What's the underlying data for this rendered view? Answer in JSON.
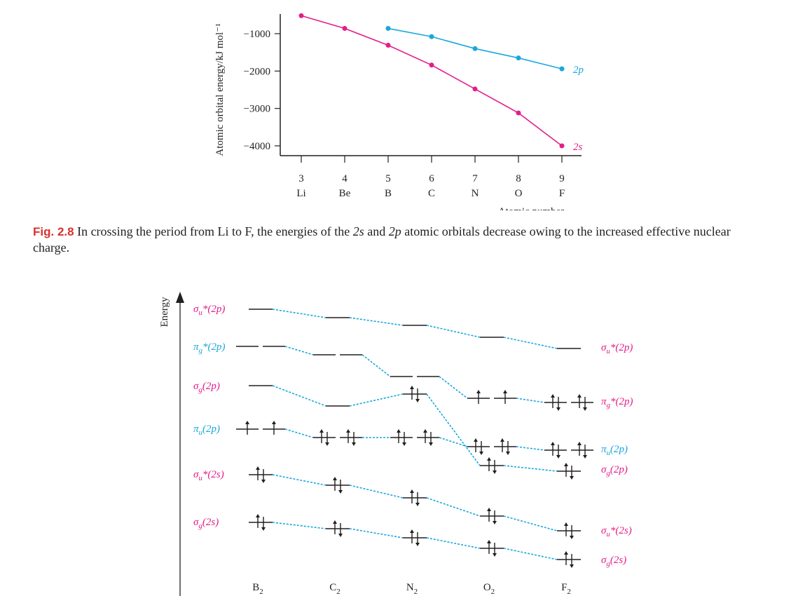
{
  "chart_data": [
    {
      "type": "line",
      "title": "",
      "ylabel": "Atomic orbital energy/kJ mol⁻¹",
      "xlabel": "Atomic number",
      "x": [
        3,
        4,
        5,
        6,
        7,
        8,
        9
      ],
      "x_element_labels": [
        "Li",
        "Be",
        "B",
        "C",
        "N",
        "O",
        "F"
      ],
      "ylim": [
        -4200,
        -400
      ],
      "yticks": [
        -1000,
        -2000,
        -3000,
        -4000
      ],
      "ytick_labels": [
        "−1000",
        "−2000",
        "−3000",
        "−4000"
      ],
      "grid": false,
      "series": [
        {
          "name": "2p",
          "color": "#1aa7dd",
          "x": [
            5,
            6,
            7,
            8,
            9
          ],
          "values": [
            -860,
            -1080,
            -1400,
            -1650,
            -1940
          ]
        },
        {
          "name": "2s",
          "color": "#e41d8b",
          "x": [
            3,
            4,
            5,
            6,
            7,
            8,
            9
          ],
          "values": [
            -520,
            -860,
            -1310,
            -1840,
            -2480,
            -3120,
            -4000
          ]
        }
      ]
    }
  ],
  "caption": {
    "label": "Fig. 2.8",
    "part1": " In crossing the period from Li to F, the energies of the ",
    "s2": "2s",
    "part2": " and ",
    "p2": "2p",
    "part3": " atomic orbitals decrease owing to the increased effective nuclear charge."
  },
  "mo_diagram": {
    "axis_label": "Energy",
    "molecules": [
      "B",
      "C",
      "N",
      "O",
      "F"
    ],
    "molecule_subscript": "2",
    "colors": {
      "label": "#e41d8b",
      "line": "#1aa7dd",
      "level": "#231f20"
    },
    "left_labels": [
      {
        "sym": "σ",
        "sub": "u",
        "star": "*",
        "orb": "(2p)"
      },
      {
        "sym": "π",
        "sub": "g",
        "star": "*",
        "orb": "(2p)"
      },
      {
        "sym": "σ",
        "sub": "g",
        "star": "",
        "orb": "(2p)"
      },
      {
        "sym": "π",
        "sub": "u",
        "star": "",
        "orb": "(2p)"
      },
      {
        "sym": "σ",
        "sub": "u",
        "star": "*",
        "orb": "(2s)"
      },
      {
        "sym": "σ",
        "sub": "g",
        "star": "",
        "orb": "(2s)"
      }
    ],
    "right_labels": [
      {
        "sym": "σ",
        "sub": "u",
        "star": "*",
        "orb": "(2p)"
      },
      {
        "sym": "π",
        "sub": "g",
        "star": "*",
        "orb": "(2p)"
      },
      {
        "sym": "π",
        "sub": "u",
        "star": "",
        "orb": "(2p)"
      },
      {
        "sym": "σ",
        "sub": "g",
        "star": "",
        "orb": "(2p)"
      },
      {
        "sym": "σ",
        "sub": "u",
        "star": "*",
        "orb": "(2s)"
      },
      {
        "sym": "σ",
        "sub": "g",
        "star": "",
        "orb": "(2s)"
      }
    ],
    "electron_counts": {
      "B": {
        "su_2p": 0,
        "pg_2p": 0,
        "sg_2p": 0,
        "pu_2p": 2,
        "su_2s": 2,
        "sg_2s": 2
      },
      "C": {
        "su_2p": 0,
        "pg_2p": 0,
        "sg_2p": 0,
        "pu_2p": 4,
        "su_2s": 2,
        "sg_2s": 2
      },
      "N": {
        "su_2p": 0,
        "pg_2p": 0,
        "sg_2p": 2,
        "pu_2p": 4,
        "su_2s": 2,
        "sg_2s": 2
      },
      "O": {
        "su_2p": 0,
        "pg_2p": 2,
        "sg_2p": 2,
        "pu_2p": 4,
        "su_2s": 2,
        "sg_2s": 2
      },
      "F": {
        "su_2p": 0,
        "pg_2p": 4,
        "sg_2p": 2,
        "pu_2p": 4,
        "su_2s": 2,
        "sg_2s": 2
      }
    }
  }
}
